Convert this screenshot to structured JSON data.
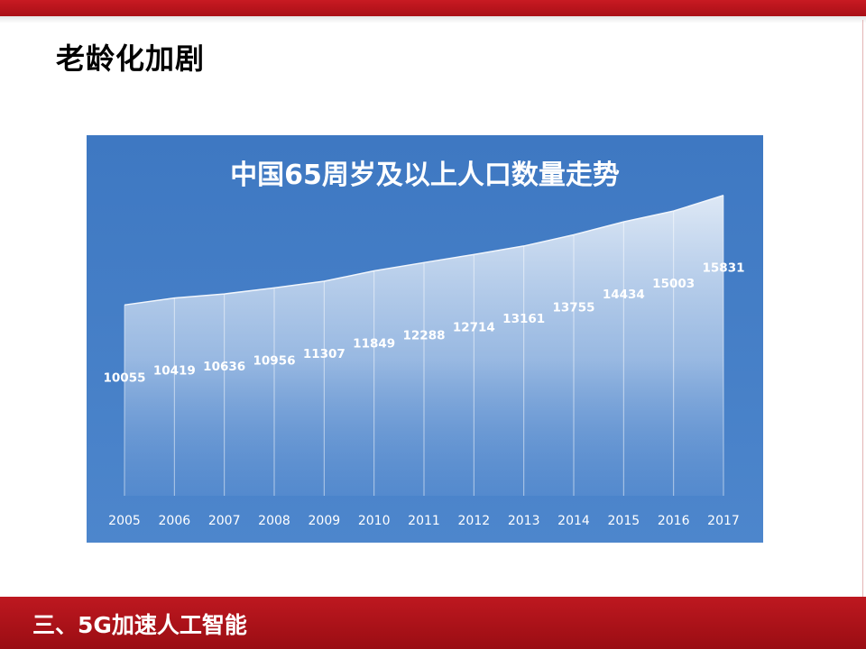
{
  "slide": {
    "title": "老龄化加剧",
    "footer": "三、5G加速人工智能"
  },
  "colors": {
    "accent_red": "#b8141c",
    "chart_bg": "#4580c8",
    "area_top": "#dfe8f5",
    "label_text": "#ffffff"
  },
  "chart_data": {
    "type": "area",
    "title": "中国65周岁及以上人口数量走势",
    "xlabel": "",
    "ylabel": "",
    "categories": [
      "2005",
      "2006",
      "2007",
      "2008",
      "2009",
      "2010",
      "2011",
      "2012",
      "2013",
      "2014",
      "2015",
      "2016",
      "2017"
    ],
    "values": [
      10055,
      10419,
      10636,
      10956,
      11307,
      11849,
      12288,
      12714,
      13161,
      13755,
      14434,
      15003,
      15831
    ],
    "ylim": [
      0,
      19000
    ],
    "grid": false,
    "legend": "none"
  }
}
